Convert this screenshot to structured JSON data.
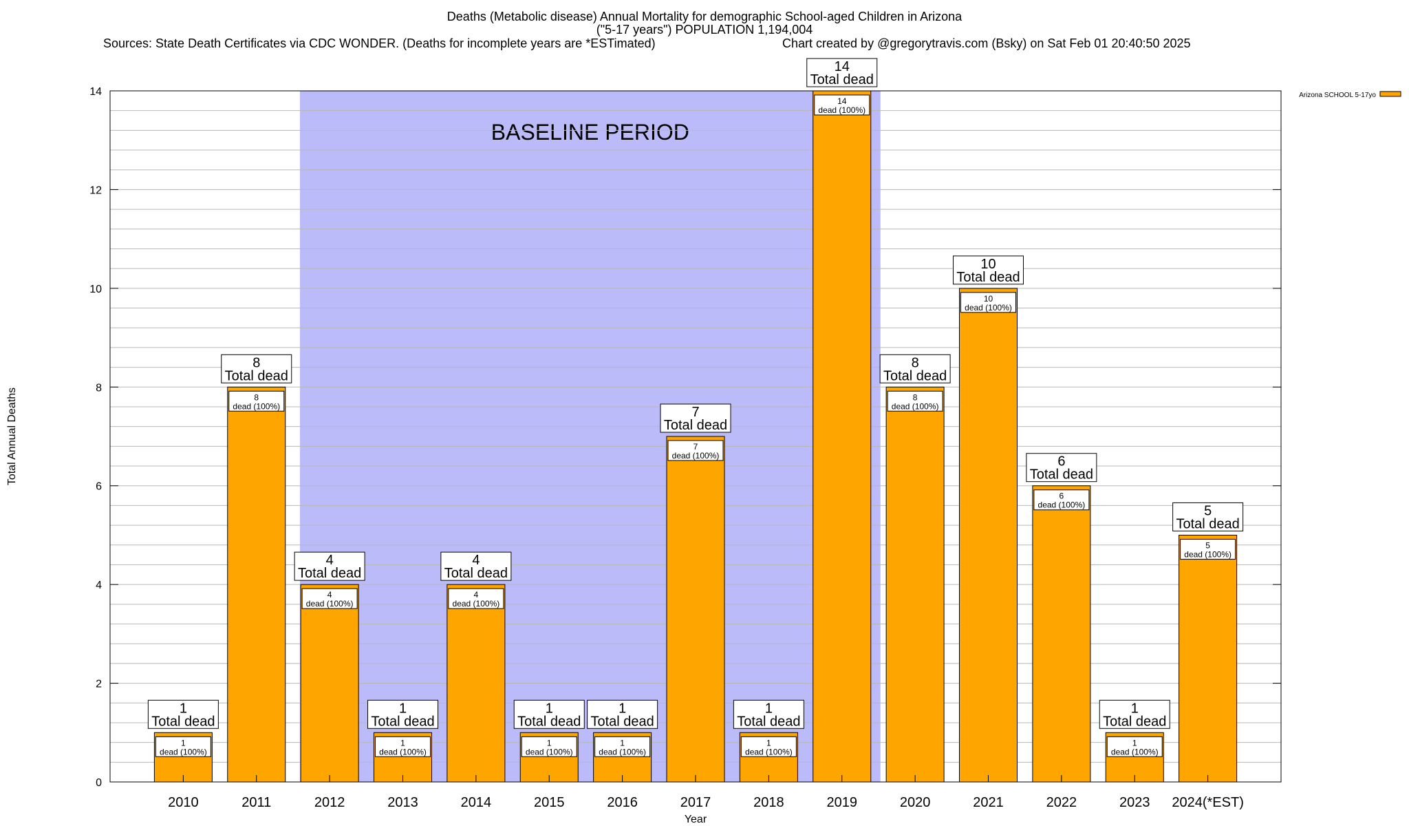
{
  "header": {
    "title": "Deaths (Metabolic disease) Annual Mortality for demographic School-aged Children in Arizona",
    "subtitle": "(\"5-17 years\") POPULATION 1,194,004",
    "sources": "Sources: State Death Certificates via CDC WONDER. (Deaths for incomplete years are *ESTimated)",
    "credit": "Chart created by @gregorytravis.com (Bsky) on Sat Feb 01 20:40:50 2025"
  },
  "chart_data": {
    "type": "bar",
    "xlabel": "Year",
    "ylabel": "Total Annual Deaths",
    "ylim": [
      0,
      14
    ],
    "y_ticks": [
      0,
      2,
      4,
      6,
      8,
      10,
      12,
      14
    ],
    "grid": true,
    "legend_position": "top-right",
    "categories": [
      "2010",
      "2011",
      "2012",
      "2013",
      "2014",
      "2015",
      "2016",
      "2017",
      "2018",
      "2019",
      "2020",
      "2021",
      "2022",
      "2023",
      "2024(*EST)"
    ],
    "series": [
      {
        "name": "Arizona SCHOOL 5-17yo",
        "color": "#ffa500",
        "values": [
          1,
          8,
          4,
          1,
          4,
          1,
          1,
          7,
          1,
          14,
          8,
          10,
          6,
          1,
          5
        ]
      }
    ],
    "total_label": "Total dead",
    "inner_label_suffix": "dead (100%)",
    "baseline": {
      "label": "BASELINE PERIOD",
      "start": "2012",
      "end": "2019",
      "color": "#bbbbf9"
    }
  }
}
